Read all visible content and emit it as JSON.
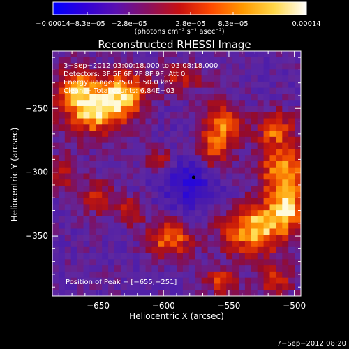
{
  "chart_data": {
    "type": "heatmap",
    "title": "Reconstructed RHESSI Image",
    "xlabel": "Heliocentric X (arcsec)",
    "ylabel": "Heliocentric Y (arcsec)",
    "xlim": [
      -685,
      -495
    ],
    "ylim": [
      -397,
      -205
    ],
    "x_ticks": [
      -650,
      -600,
      -550,
      -500
    ],
    "x_tick_labels": [
      "−650",
      "−600",
      "−550",
      "−500"
    ],
    "y_ticks": [
      -250,
      -300,
      -350
    ],
    "y_tick_labels": [
      "−250",
      "−300",
      "−350"
    ],
    "colorbar": {
      "range": [
        -0.00014,
        0.00014
      ],
      "tick_labels": [
        "−0.00014",
        "−8.3e−05",
        "−2.8e−05",
        "2.8e−05",
        "8.3e−05",
        "0.00014"
      ],
      "unit_label": "(photons cm⁻² s⁻¹ asec⁻²)",
      "colors": [
        "#0000ff",
        "#3000d8",
        "#5a10b0",
        "#8a1060",
        "#c81010",
        "#ff4a00",
        "#ff9a00",
        "#ffd84a",
        "#ffffff"
      ]
    },
    "annotations": [
      "3−Sep−2012 03:00:18.000 to 03:08:18.000",
      "Detectors: 3F 5F 6F 7F 8F 9F, Att 0",
      "Energy Range: 25.0 − 50.0 keV",
      "Clean − Total counts: 6.84E+03"
    ],
    "peak_label": "Position of Peak = [−655,−251]",
    "peak": [
      -655,
      -251
    ],
    "minimum_marker": [
      -577,
      -304
    ],
    "emission_regions": [
      {
        "x": -652,
        "y": -250,
        "sx": 18,
        "sy": 14,
        "a": 1.05
      },
      {
        "x": -628,
        "y": -236,
        "sx": 12,
        "sy": 12,
        "a": 0.65
      },
      {
        "x": -668,
        "y": -230,
        "sx": 10,
        "sy": 10,
        "a": 0.55
      },
      {
        "x": -585,
        "y": -225,
        "sx": 12,
        "sy": 9,
        "a": 0.45
      },
      {
        "x": -555,
        "y": -262,
        "sx": 11,
        "sy": 13,
        "a": 0.65
      },
      {
        "x": -565,
        "y": -290,
        "sx": 12,
        "sy": 14,
        "a": 0.7
      },
      {
        "x": -600,
        "y": -292,
        "sx": 9,
        "sy": 8,
        "a": 0.55
      },
      {
        "x": -508,
        "y": -300,
        "sx": 13,
        "sy": 16,
        "a": 0.9
      },
      {
        "x": -515,
        "y": -265,
        "sx": 10,
        "sy": 10,
        "a": 0.6
      },
      {
        "x": -530,
        "y": -345,
        "sx": 18,
        "sy": 14,
        "a": 0.95
      },
      {
        "x": -505,
        "y": -330,
        "sx": 9,
        "sy": 10,
        "a": 0.7
      },
      {
        "x": -595,
        "y": -352,
        "sx": 12,
        "sy": 10,
        "a": 0.75
      },
      {
        "x": -625,
        "y": -330,
        "sx": 8,
        "sy": 8,
        "a": 0.5
      },
      {
        "x": -650,
        "y": -320,
        "sx": 10,
        "sy": 10,
        "a": 0.45
      },
      {
        "x": -675,
        "y": -300,
        "sx": 9,
        "sy": 10,
        "a": 0.4
      },
      {
        "x": -555,
        "y": -385,
        "sx": 10,
        "sy": 8,
        "a": 0.55
      },
      {
        "x": -515,
        "y": -385,
        "sx": 9,
        "sy": 8,
        "a": 0.6
      }
    ]
  },
  "footer": {
    "timestamp": "7−Sep−2012 08:20"
  }
}
